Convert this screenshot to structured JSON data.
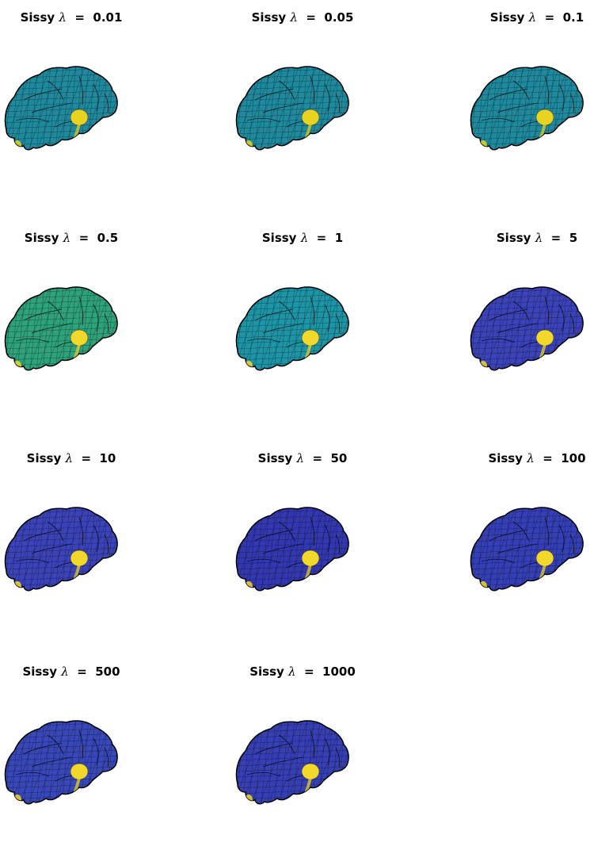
{
  "figure": {
    "title_prefix": "Sissy",
    "title_symbol": "λ",
    "panels": [
      {
        "label": "Sissy λ = 0.01",
        "prefix": "Sissy",
        "lambda": "0.01",
        "base_color": "#1f8a9e",
        "spot_color": "#e8d420"
      },
      {
        "label": "Sissy λ = 0.05",
        "prefix": "Sissy",
        "lambda": "0.05",
        "base_color": "#1f8a9e",
        "spot_color": "#e8d420"
      },
      {
        "label": "Sissy λ = 0.1",
        "prefix": "Sissy",
        "lambda": "0.1",
        "base_color": "#1f8a9e",
        "spot_color": "#e8d420"
      },
      {
        "label": "Sissy λ = 0.5",
        "prefix": "Sissy",
        "lambda": "0.5",
        "base_color": "#2ea27a",
        "spot_color": "#f2d82a"
      },
      {
        "label": "Sissy λ = 1",
        "prefix": "Sissy",
        "lambda": "1",
        "base_color": "#1e95a6",
        "spot_color": "#f2d82a"
      },
      {
        "label": "Sissy λ = 5",
        "prefix": "Sissy",
        "lambda": "5",
        "base_color": "#3b43b8",
        "spot_color": "#f2d82a"
      },
      {
        "label": "Sissy λ = 10",
        "prefix": "Sissy",
        "lambda": "10",
        "base_color": "#3b43b8",
        "spot_color": "#f2d82a"
      },
      {
        "label": "Sissy λ = 50",
        "prefix": "Sissy",
        "lambda": "50",
        "base_color": "#3438b0",
        "spot_color": "#f2d82a"
      },
      {
        "label": "Sissy λ = 100",
        "prefix": "Sissy",
        "lambda": "100",
        "base_color": "#3640b6",
        "spot_color": "#f2d82a"
      },
      {
        "label": "Sissy λ = 500",
        "prefix": "Sissy",
        "lambda": "500",
        "base_color": "#3848b8",
        "spot_color": "#f2d82a"
      },
      {
        "label": "Sissy λ = 1000",
        "prefix": "Sissy",
        "lambda": "1000",
        "base_color": "#3640b4",
        "spot_color": "#f2d82a"
      }
    ]
  }
}
